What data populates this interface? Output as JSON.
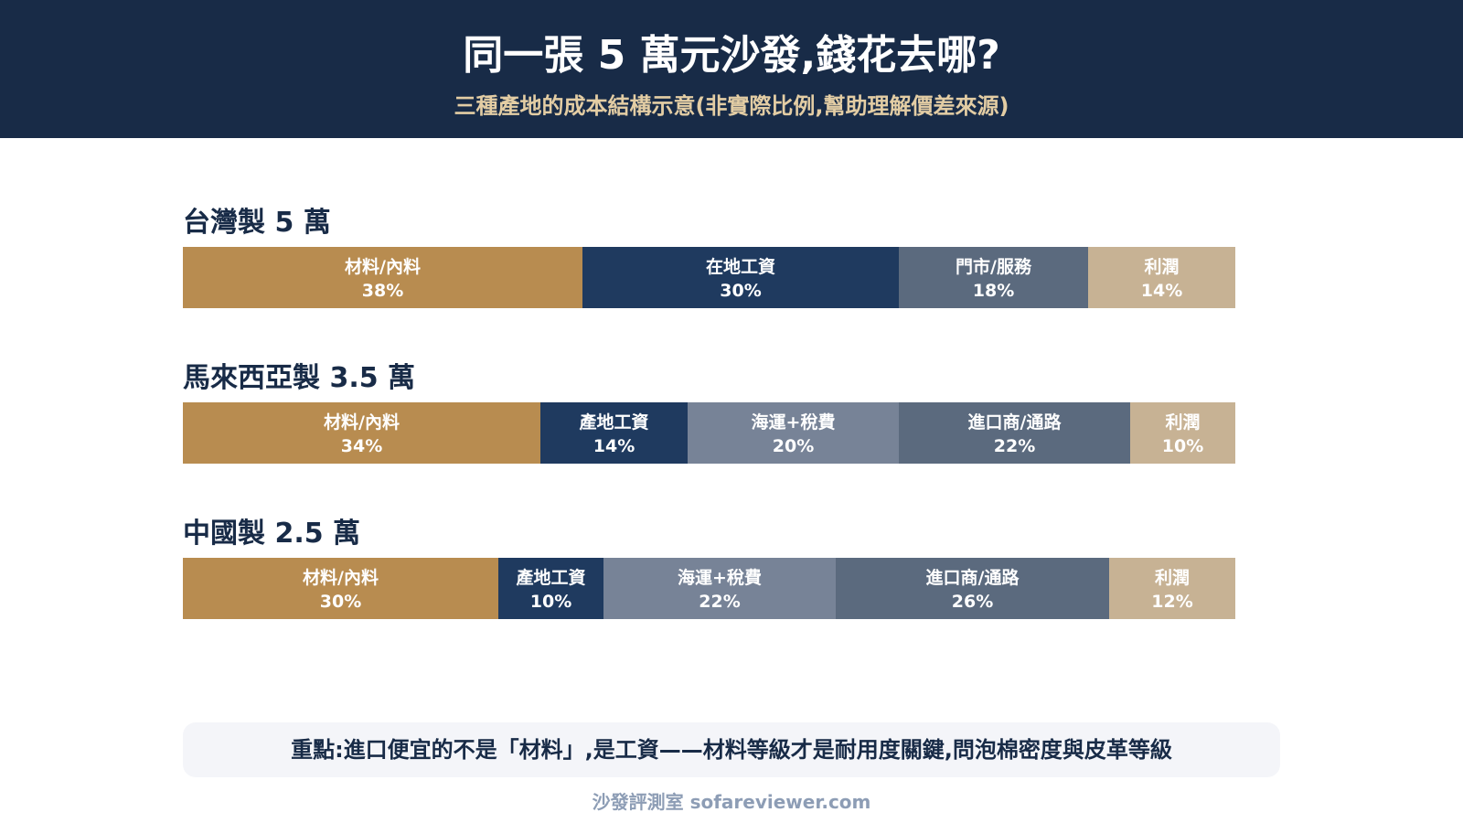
{
  "header": {
    "title": "同一張 5 萬元沙發,錢花去哪?",
    "subtitle": "三種產地的成本結構示意(非實際比例,幫助理解價差來源)"
  },
  "colors": {
    "header_bg": "#182b47",
    "subtitle": "#e3cda4",
    "material": "#b88c50",
    "labor": "#1f3a5f",
    "shipping_tax": "#778397",
    "store_import": "#5b6a7e",
    "profit": "#c7b294",
    "note_bg": "#f4f5f9",
    "footer_text": "#8d9db5"
  },
  "chart_data": {
    "type": "bar",
    "orientation": "horizontal-stacked-100%",
    "unit": "%",
    "groups": [
      {
        "label": "台灣製 5 萬",
        "segments": [
          {
            "name": "材料/內料",
            "value": 38,
            "color": "#b88c50"
          },
          {
            "name": "在地工資",
            "value": 30,
            "color": "#1f3a5f"
          },
          {
            "name": "門市/服務",
            "value": 18,
            "color": "#5b6a7e"
          },
          {
            "name": "利潤",
            "value": 14,
            "color": "#c7b294"
          }
        ]
      },
      {
        "label": "馬來西亞製 3.5 萬",
        "segments": [
          {
            "name": "材料/內料",
            "value": 34,
            "color": "#b88c50"
          },
          {
            "name": "產地工資",
            "value": 14,
            "color": "#1f3a5f"
          },
          {
            "name": "海運+稅費",
            "value": 20,
            "color": "#778397"
          },
          {
            "name": "進口商/通路",
            "value": 22,
            "color": "#5b6a7e"
          },
          {
            "name": "利潤",
            "value": 10,
            "color": "#c7b294"
          }
        ]
      },
      {
        "label": "中國製 2.5 萬",
        "segments": [
          {
            "name": "材料/內料",
            "value": 30,
            "color": "#b88c50"
          },
          {
            "name": "產地工資",
            "value": 10,
            "color": "#1f3a5f"
          },
          {
            "name": "海運+稅費",
            "value": 22,
            "color": "#778397"
          },
          {
            "name": "進口商/通路",
            "value": 26,
            "color": "#5b6a7e"
          },
          {
            "name": "利潤",
            "value": 12,
            "color": "#c7b294"
          }
        ]
      }
    ]
  },
  "note": {
    "text": "重點:進口便宜的不是「材料」,是工資——材料等級才是耐用度關鍵,問泡棉密度與皮革等級"
  },
  "footer": {
    "text": "沙發評測室 sofareviewer.com"
  }
}
